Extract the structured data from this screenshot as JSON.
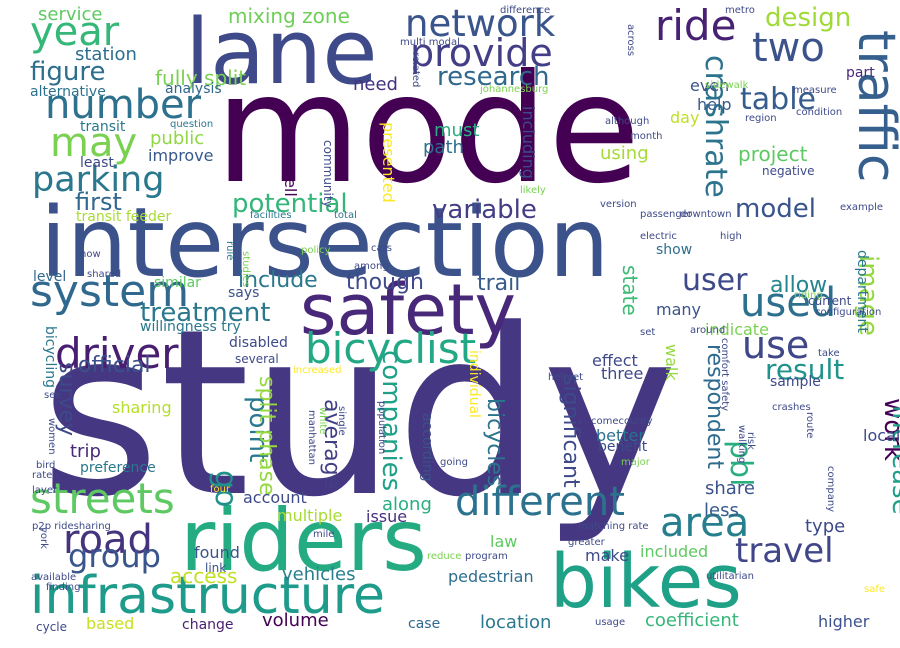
{
  "words": [
    {
      "text": "study",
      "color": "#453781"
    },
    {
      "text": "mode",
      "color": "#440154"
    },
    {
      "text": "intersection",
      "color": "#3b528b"
    },
    {
      "text": "riders",
      "color": "#25ab82"
    },
    {
      "text": "bikes",
      "color": "#1fa187"
    },
    {
      "text": "infrastructure",
      "color": "#1e9b8a"
    },
    {
      "text": "lane",
      "color": "#3e4a89"
    },
    {
      "text": "safety",
      "color": "#482878"
    },
    {
      "text": "different",
      "color": "#2c728e"
    },
    {
      "text": "streets",
      "color": "#5ec962"
    },
    {
      "text": "system",
      "color": "#31688e"
    },
    {
      "text": "bicyclist",
      "color": "#22a884"
    },
    {
      "text": "network",
      "color": "#3a548c"
    },
    {
      "text": "provide",
      "color": "#433e85"
    },
    {
      "text": "traffic",
      "color": "#355f8d"
    },
    {
      "text": "parking",
      "color": "#2a788e"
    },
    {
      "text": "driver",
      "color": "#481f70"
    },
    {
      "text": "year",
      "color": "#35b779"
    },
    {
      "text": "two",
      "color": "#3b528b"
    },
    {
      "text": "ride",
      "color": "#482173"
    },
    {
      "text": "used",
      "color": "#2d708e"
    },
    {
      "text": "use",
      "color": "#3f4788"
    },
    {
      "text": "number",
      "color": "#2d718e"
    },
    {
      "text": "may",
      "color": "#7ad151"
    },
    {
      "text": "road",
      "color": "#46337e"
    },
    {
      "text": "area",
      "color": "#277f8e"
    },
    {
      "text": "travel",
      "color": "#404688"
    },
    {
      "text": "group",
      "color": "#39568c"
    },
    {
      "text": "research",
      "color": "#31688e"
    },
    {
      "text": "figure",
      "color": "#2e6f8e"
    },
    {
      "text": "table",
      "color": "#365c8d"
    },
    {
      "text": "design",
      "color": "#a0da39"
    },
    {
      "text": "potential",
      "color": "#34b679"
    },
    {
      "text": "variable",
      "color": "#433e85"
    },
    {
      "text": "first",
      "color": "#31688e"
    },
    {
      "text": "treatment",
      "color": "#2a788e"
    },
    {
      "text": "user",
      "color": "#3e4989"
    },
    {
      "text": "result",
      "color": "#20938c"
    },
    {
      "text": "companies",
      "color": "#1fa187"
    },
    {
      "text": "crashrate",
      "color": "#2c738e"
    },
    {
      "text": "model",
      "color": "#3a548c"
    },
    {
      "text": "project",
      "color": "#5ec962"
    },
    {
      "text": "image",
      "color": "#93d741"
    },
    {
      "text": "work",
      "color": "#440154"
    },
    {
      "text": "increase",
      "color": "#1f9e89"
    },
    {
      "text": "pbl",
      "color": "#29af7f"
    },
    {
      "text": "go",
      "color": "#21918c"
    },
    {
      "text": "point",
      "color": "#2a788e"
    },
    {
      "text": "survey",
      "color": "#3e4989"
    },
    {
      "text": "official",
      "color": "#3b528b"
    },
    {
      "text": "include",
      "color": "#2a788e"
    },
    {
      "text": "though",
      "color": "#3e4989"
    },
    {
      "text": "trail",
      "color": "#375b8d"
    },
    {
      "text": "allow",
      "color": "#25858e"
    },
    {
      "text": "fully split",
      "color": "#7ad151"
    },
    {
      "text": "mixing zone",
      "color": "#6ece58"
    },
    {
      "text": "service",
      "color": "#5ec962"
    },
    {
      "text": "station",
      "color": "#2e6e8e"
    },
    {
      "text": "alternative",
      "color": "#2c728e"
    },
    {
      "text": "analysis",
      "color": "#31688e"
    },
    {
      "text": "transit",
      "color": "#2a788e"
    },
    {
      "text": "public",
      "color": "#8fd744"
    },
    {
      "text": "improve",
      "color": "#38588c"
    },
    {
      "text": "least",
      "color": "#3e4a89"
    },
    {
      "text": "transit feeder",
      "color": "#a8db34"
    },
    {
      "text": "need",
      "color": "#46327e"
    },
    {
      "text": "must",
      "color": "#29af7f"
    },
    {
      "text": "path",
      "color": "#2e6e8e"
    },
    {
      "text": "including",
      "color": "#3e4a89"
    },
    {
      "text": "using",
      "color": "#a5db36"
    },
    {
      "text": "day",
      "color": "#bddf26"
    },
    {
      "text": "even",
      "color": "#3b528b"
    },
    {
      "text": "help",
      "color": "#38588c"
    },
    {
      "text": "part",
      "color": "#482878"
    },
    {
      "text": "split phase",
      "color": "#95d840"
    },
    {
      "text": "average",
      "color": "#423f85"
    },
    {
      "text": "bicycles",
      "color": "#2c738e"
    },
    {
      "text": "significant",
      "color": "#3e4a89"
    },
    {
      "text": "state",
      "color": "#3bbb75"
    },
    {
      "text": "respondent",
      "color": "#2f6b8e"
    },
    {
      "text": "trip",
      "color": "#482878"
    },
    {
      "text": "sharing",
      "color": "#b5de2b"
    },
    {
      "text": "access",
      "color": "#c2df23"
    },
    {
      "text": "vehicles",
      "color": "#277f8e"
    },
    {
      "text": "along",
      "color": "#29af7f"
    },
    {
      "text": "account",
      "color": "#3e4a89"
    },
    {
      "text": "multiple",
      "color": "#a8db34"
    },
    {
      "text": "issue",
      "color": "#46327e"
    },
    {
      "text": "share",
      "color": "#3b528b"
    },
    {
      "text": "less",
      "color": "#375b8d"
    },
    {
      "text": "type",
      "color": "#3e4989"
    },
    {
      "text": "make",
      "color": "#3e4a89"
    },
    {
      "text": "included",
      "color": "#5ec962"
    },
    {
      "text": "pedestrian",
      "color": "#2e6e8e"
    },
    {
      "text": "based",
      "color": "#c8e020"
    },
    {
      "text": "change",
      "color": "#481f70"
    },
    {
      "text": "volume",
      "color": "#440154"
    },
    {
      "text": "case",
      "color": "#31688e"
    },
    {
      "text": "location",
      "color": "#2a788e"
    },
    {
      "text": "coefficient",
      "color": "#35b779"
    },
    {
      "text": "higher",
      "color": "#3b528b"
    },
    {
      "text": "found",
      "color": "#39568c"
    },
    {
      "text": "law",
      "color": "#5ec962"
    },
    {
      "text": "link",
      "color": "#3b528b"
    },
    {
      "text": "willingness try",
      "color": "#2a788e"
    },
    {
      "text": "disabled",
      "color": "#3e4a89"
    },
    {
      "text": "effect",
      "color": "#3e4989"
    },
    {
      "text": "three",
      "color": "#3e4989"
    },
    {
      "text": "many",
      "color": "#3b528b"
    },
    {
      "text": "indicate",
      "color": "#7ad151"
    },
    {
      "text": "sample",
      "color": "#3e4989"
    },
    {
      "text": "better",
      "color": "#2c728e"
    },
    {
      "text": "benefit",
      "color": "#3e4a89"
    },
    {
      "text": "level",
      "color": "#31688e"
    },
    {
      "text": "says",
      "color": "#3b528b"
    },
    {
      "text": "similar",
      "color": "#5ec962"
    },
    {
      "text": "several",
      "color": "#3e4a89"
    },
    {
      "text": "show",
      "color": "#2e6e8e"
    },
    {
      "text": "well",
      "color": "#440154"
    },
    {
      "text": "community",
      "color": "#3e4a89"
    },
    {
      "text": "presented",
      "color": "#fde725"
    },
    {
      "text": "question",
      "color": "#2a788e"
    },
    {
      "text": "negative",
      "color": "#3e4a89"
    },
    {
      "text": "department",
      "color": "#2a788e"
    },
    {
      "text": "local",
      "color": "#3e4989"
    },
    {
      "text": "current",
      "color": "#3e4a89"
    },
    {
      "text": "walk",
      "color": "#95d840"
    },
    {
      "text": "individual",
      "color": "#fde725"
    },
    {
      "text": "preference",
      "color": "#2a788e"
    },
    {
      "text": "according",
      "color": "#3b528b"
    },
    {
      "text": "bicycling",
      "color": "#2a788e"
    },
    {
      "text": "johannesburg",
      "color": "#7ad151"
    },
    {
      "text": "sidewalk",
      "color": "#7ad151"
    },
    {
      "text": "difference",
      "color": "#3e4989"
    },
    {
      "text": "metro",
      "color": "#3e4989"
    },
    {
      "text": "multi modal",
      "color": "#3e4a89"
    },
    {
      "text": "related",
      "color": "#3e4a89"
    },
    {
      "text": "across",
      "color": "#3e4a89"
    },
    {
      "text": "measure",
      "color": "#3e4a89"
    },
    {
      "text": "condition",
      "color": "#3e4a89"
    },
    {
      "text": "region",
      "color": "#3e4a89"
    },
    {
      "text": "although",
      "color": "#3e4a89"
    },
    {
      "text": "month",
      "color": "#3e4a89"
    },
    {
      "text": "likely",
      "color": "#7ad151"
    },
    {
      "text": "version",
      "color": "#3e4a89"
    },
    {
      "text": "passenger",
      "color": "#3e4a89"
    },
    {
      "text": "downtown",
      "color": "#3e4a89"
    },
    {
      "text": "example",
      "color": "#3e4a89"
    },
    {
      "text": "electric",
      "color": "#3e4a89"
    },
    {
      "text": "high",
      "color": "#3e4a89"
    },
    {
      "text": "facilities",
      "color": "#2a788e"
    },
    {
      "text": "total",
      "color": "#2a788e"
    },
    {
      "text": "rule",
      "color": "#2a788e"
    },
    {
      "text": "now",
      "color": "#3e4a89"
    },
    {
      "text": "cars",
      "color": "#3e4a89"
    },
    {
      "text": "policy",
      "color": "#7ad151"
    },
    {
      "text": "studies",
      "color": "#7ad151"
    },
    {
      "text": "among",
      "color": "#3e4a89"
    },
    {
      "text": "shared",
      "color": "#3e4a89"
    },
    {
      "text": "riding",
      "color": "#7ad151"
    },
    {
      "text": "set",
      "color": "#3e4a89"
    },
    {
      "text": "around",
      "color": "#3e4a89"
    },
    {
      "text": "comfort safety",
      "color": "#3e4a89"
    },
    {
      "text": "take",
      "color": "#3e4a89"
    },
    {
      "text": "configuration",
      "color": "#3e4a89"
    },
    {
      "text": "increased",
      "color": "#fde725"
    },
    {
      "text": "helmet",
      "color": "#3e4a89"
    },
    {
      "text": "see",
      "color": "#3e4a89"
    },
    {
      "text": "women",
      "color": "#3e4a89"
    },
    {
      "text": "single",
      "color": "#3e4a89"
    },
    {
      "text": "manhattan",
      "color": "#3e4a89"
    },
    {
      "text": "population",
      "color": "#3e4a89"
    },
    {
      "text": "white",
      "color": "#7ad151"
    },
    {
      "text": "comecounty",
      "color": "#3e4a89"
    },
    {
      "text": "route",
      "color": "#3e4a89"
    },
    {
      "text": "crashes",
      "color": "#3e4a89"
    },
    {
      "text": "walking",
      "color": "#3e4a89"
    },
    {
      "text": "risk",
      "color": "#3e4a89"
    },
    {
      "text": "major",
      "color": "#7ad151"
    },
    {
      "text": "going",
      "color": "#3e4a89"
    },
    {
      "text": "bird",
      "color": "#3e4a89"
    },
    {
      "text": "layer",
      "color": "#3e4a89"
    },
    {
      "text": "rate",
      "color": "#3e4a89"
    },
    {
      "text": "four",
      "color": "#fde725"
    },
    {
      "text": "company",
      "color": "#3e4a89"
    },
    {
      "text": "p2p ridesharing",
      "color": "#3e4a89"
    },
    {
      "text": "mile",
      "color": "#3e4a89"
    },
    {
      "text": "york",
      "color": "#3e4a89"
    },
    {
      "text": "matching rate",
      "color": "#3e4a89"
    },
    {
      "text": "greater",
      "color": "#3e4a89"
    },
    {
      "text": "reduce",
      "color": "#7ad151"
    },
    {
      "text": "program",
      "color": "#3e4a89"
    },
    {
      "text": "available",
      "color": "#3e4a89"
    },
    {
      "text": "finding",
      "color": "#3e4a89"
    },
    {
      "text": "utilitarian",
      "color": "#3e4a89"
    },
    {
      "text": "safe",
      "color": "#fde725"
    },
    {
      "text": "cycle",
      "color": "#3e4a89"
    },
    {
      "text": "usage",
      "color": "#3e4a89"
    }
  ]
}
